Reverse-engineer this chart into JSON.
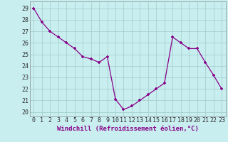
{
  "x": [
    0,
    1,
    2,
    3,
    4,
    5,
    6,
    7,
    8,
    9,
    10,
    11,
    12,
    13,
    14,
    15,
    16,
    17,
    18,
    19,
    20,
    21,
    22,
    23
  ],
  "y": [
    29.0,
    27.8,
    27.0,
    26.5,
    26.0,
    25.5,
    24.8,
    24.6,
    24.3,
    24.8,
    21.1,
    20.2,
    20.5,
    21.0,
    21.5,
    22.0,
    22.5,
    26.5,
    26.0,
    25.5,
    25.5,
    24.3,
    23.2,
    22.0
  ],
  "line_color": "#880088",
  "marker": "+",
  "bg_color": "#c8eef0",
  "grid_color": "#a0ccc8",
  "xlabel": "Windchill (Refroidissement éolien,°C)",
  "xlabel_fontsize": 6.5,
  "ylabel_ticks": [
    20,
    21,
    22,
    23,
    24,
    25,
    26,
    27,
    28,
    29
  ],
  "xlim": [
    -0.5,
    23.5
  ],
  "ylim": [
    19.6,
    29.6
  ],
  "tick_fontsize": 6.0,
  "spine_color": "#888888"
}
